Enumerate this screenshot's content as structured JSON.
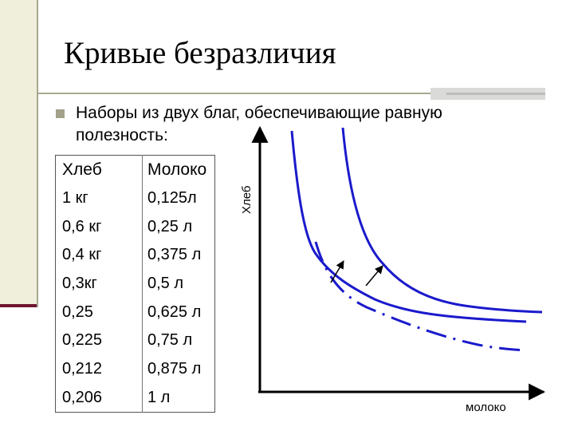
{
  "slide": {
    "title": "Кривые безразличия",
    "bullet": "Наборы из двух благ, обеспечивающие равную полезность:"
  },
  "table": {
    "headers": [
      "Хлеб",
      "Молоко"
    ],
    "rows": [
      [
        "1 кг",
        "0,125л"
      ],
      [
        "0,6 кг",
        "0,25 л"
      ],
      [
        "0,4 кг",
        "0,375 л"
      ],
      [
        "0,3кг",
        "0,5 л"
      ],
      [
        "0,25",
        "0,625 л"
      ],
      [
        "0,225",
        "0,75 л"
      ],
      [
        "0,212",
        "0,875 л"
      ],
      [
        "0,206",
        "1 л"
      ]
    ]
  },
  "diagram": {
    "y_axis_label": "Хлеб",
    "x_axis_label": "молоко",
    "curve_color": "#1A1ACC",
    "curves": [
      {
        "style": "solid"
      },
      {
        "style": "solid"
      },
      {
        "style": "dash-dot"
      }
    ]
  }
}
